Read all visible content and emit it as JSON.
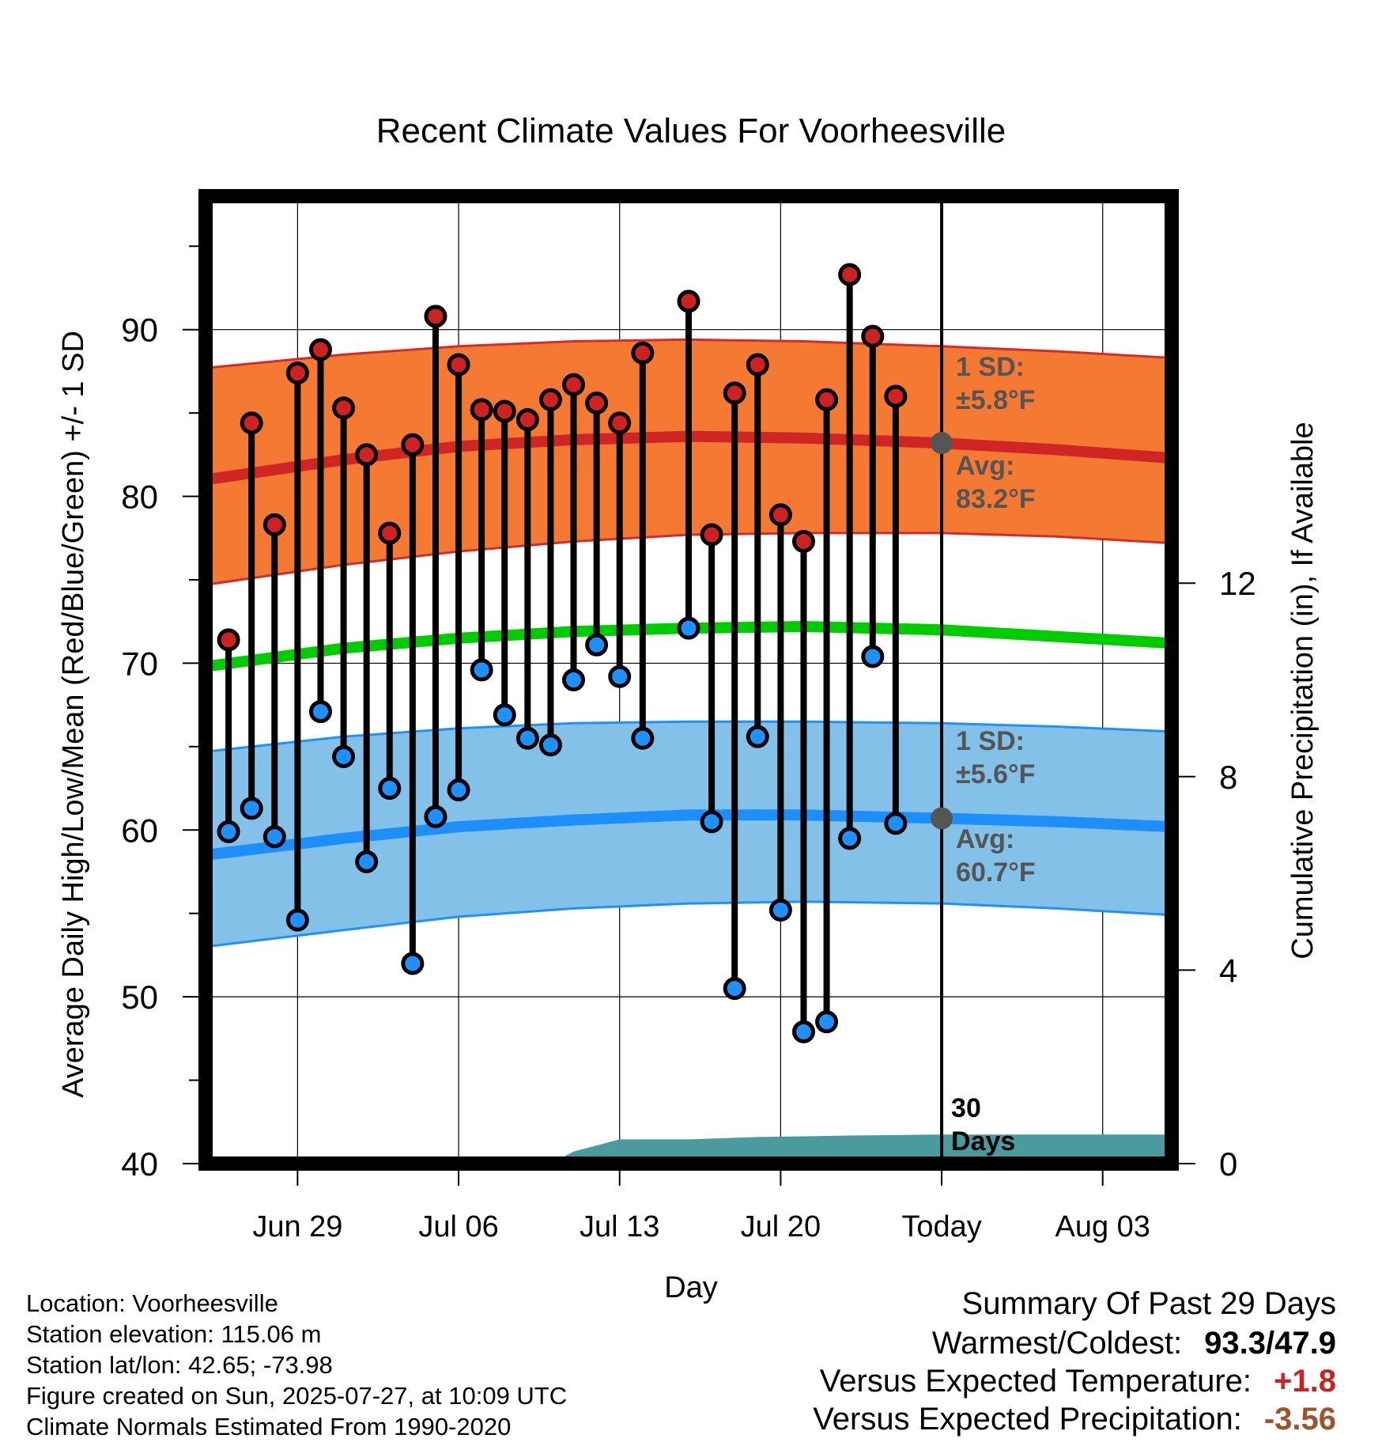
{
  "chart_data": {
    "type": "line",
    "title": "Recent Climate Values For Voorheesville",
    "xlabel": "Day",
    "ylabel": "Average Daily High/Low/Mean (Red/Blue/Green) +/- 1 SD",
    "y2label": "Cumulative Precipitation (in), If Available",
    "ylim": [
      40,
      98
    ],
    "y2lim": [
      0,
      20
    ],
    "yticks": [
      "40",
      "50",
      "60",
      "70",
      "80",
      "90"
    ],
    "y2ticks": [
      "0",
      "4",
      "8",
      "12"
    ],
    "xlim": [
      "2025-06-25",
      "2025-08-06"
    ],
    "xticks": [
      {
        "date": "2025-06-29",
        "label": "Jun 29"
      },
      {
        "date": "2025-07-06",
        "label": "Jul 06"
      },
      {
        "date": "2025-07-13",
        "label": "Jul 13"
      },
      {
        "date": "2025-07-20",
        "label": "Jul 20"
      },
      {
        "date": "2025-07-27",
        "label": "Today"
      },
      {
        "date": "2025-08-03",
        "label": "Aug 03"
      }
    ],
    "grid": true,
    "today_marker": {
      "date": "2025-07-27",
      "label_line1": "30",
      "label_line2": "Days"
    },
    "normals": {
      "high_mean": [
        {
          "date": "2025-06-25",
          "value": 81.0
        },
        {
          "date": "2025-07-01",
          "value": 82.2
        },
        {
          "date": "2025-07-06",
          "value": 83.0
        },
        {
          "date": "2025-07-11",
          "value": 83.4
        },
        {
          "date": "2025-07-16",
          "value": 83.6
        },
        {
          "date": "2025-07-21",
          "value": 83.5
        },
        {
          "date": "2025-07-27",
          "value": 83.2
        },
        {
          "date": "2025-08-01",
          "value": 82.8
        },
        {
          "date": "2025-08-06",
          "value": 82.3
        }
      ],
      "high_upper": [
        {
          "date": "2025-06-25",
          "value": 87.7
        },
        {
          "date": "2025-07-01",
          "value": 88.5
        },
        {
          "date": "2025-07-06",
          "value": 89.0
        },
        {
          "date": "2025-07-11",
          "value": 89.3
        },
        {
          "date": "2025-07-16",
          "value": 89.4
        },
        {
          "date": "2025-07-21",
          "value": 89.3
        },
        {
          "date": "2025-07-27",
          "value": 89.0
        },
        {
          "date": "2025-08-01",
          "value": 88.7
        },
        {
          "date": "2025-08-06",
          "value": 88.3
        }
      ],
      "high_lower": [
        {
          "date": "2025-06-25",
          "value": 74.7
        },
        {
          "date": "2025-07-01",
          "value": 75.9
        },
        {
          "date": "2025-07-06",
          "value": 76.7
        },
        {
          "date": "2025-07-11",
          "value": 77.3
        },
        {
          "date": "2025-07-16",
          "value": 77.7
        },
        {
          "date": "2025-07-21",
          "value": 77.8
        },
        {
          "date": "2025-07-27",
          "value": 77.8
        },
        {
          "date": "2025-08-01",
          "value": 77.6
        },
        {
          "date": "2025-08-06",
          "value": 77.2
        }
      ],
      "low_mean": [
        {
          "date": "2025-06-25",
          "value": 58.5
        },
        {
          "date": "2025-07-01",
          "value": 59.5
        },
        {
          "date": "2025-07-06",
          "value": 60.2
        },
        {
          "date": "2025-07-11",
          "value": 60.6
        },
        {
          "date": "2025-07-16",
          "value": 60.9
        },
        {
          "date": "2025-07-21",
          "value": 60.9
        },
        {
          "date": "2025-07-27",
          "value": 60.7
        },
        {
          "date": "2025-08-01",
          "value": 60.5
        },
        {
          "date": "2025-08-06",
          "value": 60.2
        }
      ],
      "low_upper": [
        {
          "date": "2025-06-25",
          "value": 64.7
        },
        {
          "date": "2025-07-01",
          "value": 65.6
        },
        {
          "date": "2025-07-06",
          "value": 66.1
        },
        {
          "date": "2025-07-11",
          "value": 66.4
        },
        {
          "date": "2025-07-16",
          "value": 66.5
        },
        {
          "date": "2025-07-21",
          "value": 66.5
        },
        {
          "date": "2025-07-27",
          "value": 66.4
        },
        {
          "date": "2025-08-01",
          "value": 66.2
        },
        {
          "date": "2025-08-06",
          "value": 65.9
        }
      ],
      "low_lower": [
        {
          "date": "2025-06-25",
          "value": 53.0
        },
        {
          "date": "2025-07-01",
          "value": 54.0
        },
        {
          "date": "2025-07-06",
          "value": 54.8
        },
        {
          "date": "2025-07-11",
          "value": 55.3
        },
        {
          "date": "2025-07-16",
          "value": 55.6
        },
        {
          "date": "2025-07-21",
          "value": 55.7
        },
        {
          "date": "2025-07-27",
          "value": 55.6
        },
        {
          "date": "2025-08-01",
          "value": 55.3
        },
        {
          "date": "2025-08-06",
          "value": 54.9
        }
      ],
      "mean": [
        {
          "date": "2025-06-25",
          "value": 69.8
        },
        {
          "date": "2025-07-01",
          "value": 70.9
        },
        {
          "date": "2025-07-06",
          "value": 71.5
        },
        {
          "date": "2025-07-11",
          "value": 71.9
        },
        {
          "date": "2025-07-16",
          "value": 72.1
        },
        {
          "date": "2025-07-21",
          "value": 72.2
        },
        {
          "date": "2025-07-27",
          "value": 72.0
        },
        {
          "date": "2025-08-01",
          "value": 71.6
        },
        {
          "date": "2025-08-06",
          "value": 71.2
        }
      ]
    },
    "annotations": {
      "high_sd_label": "1 SD:",
      "high_sd_value": "±5.8°F",
      "high_avg_label": "Avg:",
      "high_avg_value": "83.2°F",
      "high_avg": 83.2,
      "low_sd_label": "1 SD:",
      "low_sd_value": "±5.6°F",
      "low_avg_label": "Avg:",
      "low_avg_value": "60.7°F",
      "low_avg": 60.7
    },
    "series": [
      {
        "name": "High",
        "color": "#cc2222",
        "points": [
          {
            "date": "2025-06-26",
            "value": 71.4
          },
          {
            "date": "2025-06-27",
            "value": 84.4
          },
          {
            "date": "2025-06-28",
            "value": 78.3
          },
          {
            "date": "2025-06-29",
            "value": 87.4
          },
          {
            "date": "2025-06-30",
            "value": 88.8
          },
          {
            "date": "2025-07-01",
            "value": 85.3
          },
          {
            "date": "2025-07-02",
            "value": 82.5
          },
          {
            "date": "2025-07-03",
            "value": 77.8
          },
          {
            "date": "2025-07-04",
            "value": 83.1
          },
          {
            "date": "2025-07-05",
            "value": 90.8
          },
          {
            "date": "2025-07-06",
            "value": 87.9
          },
          {
            "date": "2025-07-07",
            "value": 85.2
          },
          {
            "date": "2025-07-08",
            "value": 85.1
          },
          {
            "date": "2025-07-09",
            "value": 84.6
          },
          {
            "date": "2025-07-10",
            "value": 85.8
          },
          {
            "date": "2025-07-11",
            "value": 86.7
          },
          {
            "date": "2025-07-12",
            "value": 85.6
          },
          {
            "date": "2025-07-13",
            "value": 84.4
          },
          {
            "date": "2025-07-14",
            "value": 88.6
          },
          {
            "date": "2025-07-16",
            "value": 91.7
          },
          {
            "date": "2025-07-17",
            "value": 77.7
          },
          {
            "date": "2025-07-18",
            "value": 86.2
          },
          {
            "date": "2025-07-19",
            "value": 87.9
          },
          {
            "date": "2025-07-20",
            "value": 78.9
          },
          {
            "date": "2025-07-21",
            "value": 77.3
          },
          {
            "date": "2025-07-22",
            "value": 85.8
          },
          {
            "date": "2025-07-23",
            "value": 93.3
          },
          {
            "date": "2025-07-24",
            "value": 89.6
          },
          {
            "date": "2025-07-25",
            "value": 86.0
          }
        ]
      },
      {
        "name": "Low",
        "color": "#1e90ff",
        "points": [
          {
            "date": "2025-06-26",
            "value": 59.9
          },
          {
            "date": "2025-06-27",
            "value": 61.3
          },
          {
            "date": "2025-06-28",
            "value": 59.6
          },
          {
            "date": "2025-06-29",
            "value": 54.6
          },
          {
            "date": "2025-06-30",
            "value": 67.1
          },
          {
            "date": "2025-07-01",
            "value": 64.4
          },
          {
            "date": "2025-07-02",
            "value": 58.1
          },
          {
            "date": "2025-07-03",
            "value": 62.5
          },
          {
            "date": "2025-07-04",
            "value": 52.0
          },
          {
            "date": "2025-07-05",
            "value": 60.8
          },
          {
            "date": "2025-07-06",
            "value": 62.4
          },
          {
            "date": "2025-07-07",
            "value": 69.6
          },
          {
            "date": "2025-07-08",
            "value": 66.9
          },
          {
            "date": "2025-07-09",
            "value": 65.5
          },
          {
            "date": "2025-07-10",
            "value": 65.1
          },
          {
            "date": "2025-07-11",
            "value": 69.0
          },
          {
            "date": "2025-07-12",
            "value": 71.1
          },
          {
            "date": "2025-07-13",
            "value": 69.2
          },
          {
            "date": "2025-07-14",
            "value": 65.5
          },
          {
            "date": "2025-07-16",
            "value": 72.1
          },
          {
            "date": "2025-07-17",
            "value": 60.5
          },
          {
            "date": "2025-07-18",
            "value": 50.5
          },
          {
            "date": "2025-07-19",
            "value": 65.6
          },
          {
            "date": "2025-07-20",
            "value": 55.2
          },
          {
            "date": "2025-07-21",
            "value": 47.9
          },
          {
            "date": "2025-07-22",
            "value": 48.5
          },
          {
            "date": "2025-07-23",
            "value": 59.5
          },
          {
            "date": "2025-07-24",
            "value": 70.4
          },
          {
            "date": "2025-07-25",
            "value": 60.4
          }
        ]
      },
      {
        "name": "Cumulative Precipitation",
        "axis": "y2",
        "color": "#4a9a9e",
        "points": [
          {
            "date": "2025-06-25",
            "value": 0
          },
          {
            "date": "2025-07-10",
            "value": 0
          },
          {
            "date": "2025-07-11",
            "value": 0.25
          },
          {
            "date": "2025-07-13",
            "value": 0.5
          },
          {
            "date": "2025-07-16",
            "value": 0.5
          },
          {
            "date": "2025-07-19",
            "value": 0.55
          },
          {
            "date": "2025-07-23",
            "value": 0.58
          },
          {
            "date": "2025-07-27",
            "value": 0.6
          },
          {
            "date": "2025-08-06",
            "value": 0.6
          }
        ]
      }
    ]
  },
  "footer": {
    "location": "Location: Voorheesville",
    "elevation": "Station elevation: 115.06 m",
    "latlon": "Station lat/lon: 42.65; -73.98",
    "created": "Figure created on Sun, 2025-07-27, at 10:09 UTC",
    "normals": "Climate Normals Estimated From 1990-2020"
  },
  "summary": {
    "title": "Summary Of Past 29 Days",
    "warm_cold_label": "Warmest/Coldest:",
    "warm_cold_value": "93.3/47.9",
    "temp_label": "Versus Expected Temperature:",
    "temp_value": "+1.8",
    "temp_color": "#cc2222",
    "precip_label": "Versus Expected Precipitation:",
    "precip_value": "-3.56",
    "precip_color": "#a0522d"
  }
}
